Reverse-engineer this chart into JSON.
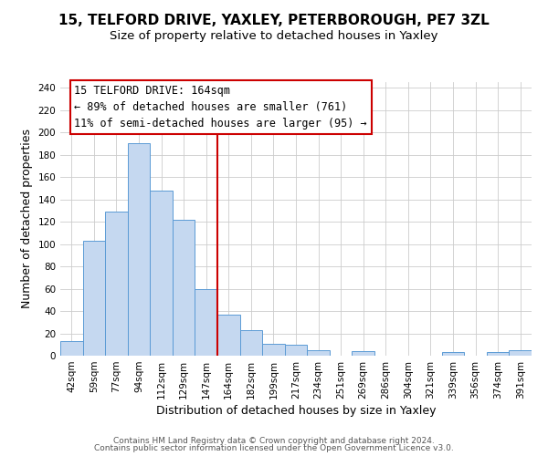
{
  "title1": "15, TELFORD DRIVE, YAXLEY, PETERBOROUGH, PE7 3ZL",
  "title2": "Size of property relative to detached houses in Yaxley",
  "xlabel": "Distribution of detached houses by size in Yaxley",
  "ylabel": "Number of detached properties",
  "bin_labels": [
    "42sqm",
    "59sqm",
    "77sqm",
    "94sqm",
    "112sqm",
    "129sqm",
    "147sqm",
    "164sqm",
    "182sqm",
    "199sqm",
    "217sqm",
    "234sqm",
    "251sqm",
    "269sqm",
    "286sqm",
    "304sqm",
    "321sqm",
    "339sqm",
    "356sqm",
    "374sqm",
    "391sqm"
  ],
  "bar_heights": [
    13,
    103,
    129,
    190,
    148,
    122,
    60,
    37,
    23,
    11,
    10,
    5,
    0,
    4,
    0,
    0,
    0,
    3,
    0,
    3,
    5
  ],
  "bar_color": "#c5d8f0",
  "bar_edge_color": "#5b9bd5",
  "reference_line_index": 7,
  "reference_line_color": "#cc0000",
  "annotation_title": "15 TELFORD DRIVE: 164sqm",
  "annotation_line1": "← 89% of detached houses are smaller (761)",
  "annotation_line2": "11% of semi-detached houses are larger (95) →",
  "annotation_box_color": "#ffffff",
  "annotation_box_edge_color": "#cc0000",
  "ylim": [
    0,
    245
  ],
  "yticks": [
    0,
    20,
    40,
    60,
    80,
    100,
    120,
    140,
    160,
    180,
    200,
    220,
    240
  ],
  "footer1": "Contains HM Land Registry data © Crown copyright and database right 2024.",
  "footer2": "Contains public sector information licensed under the Open Government Licence v3.0.",
  "background_color": "#ffffff",
  "grid_color": "#cccccc",
  "title1_fontsize": 11,
  "title2_fontsize": 9.5,
  "axis_label_fontsize": 9,
  "tick_fontsize": 7.5,
  "annotation_fontsize": 8.5,
  "footer_fontsize": 6.5
}
